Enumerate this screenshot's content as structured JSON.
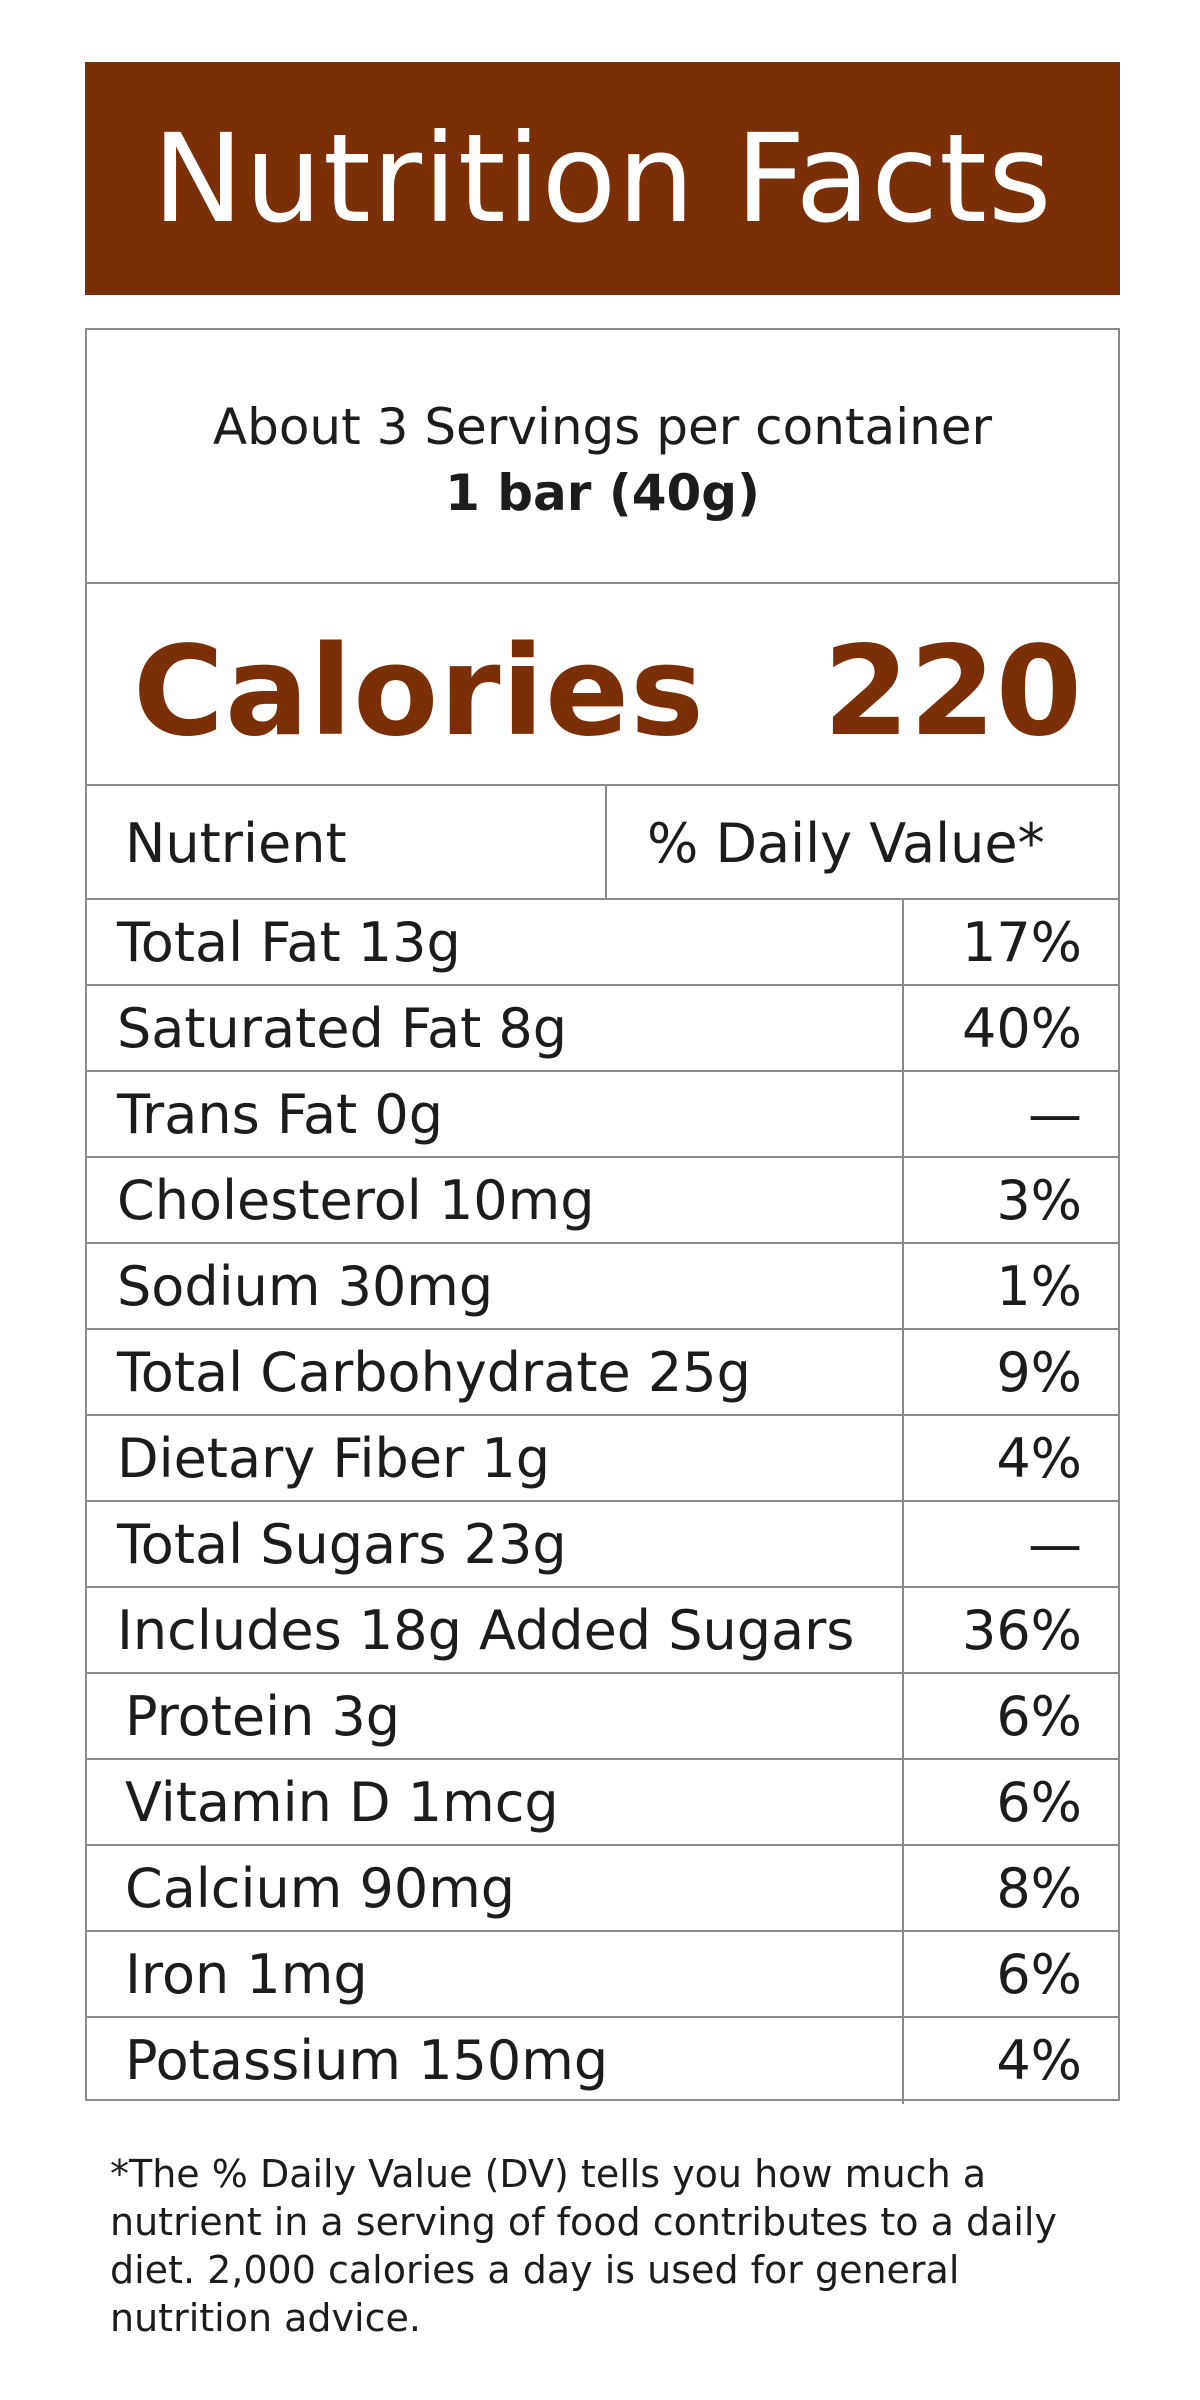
{
  "header": {
    "title": "Nutrition Facts"
  },
  "serving": {
    "servings_per_container": "About 3 Servings per container",
    "serving_size": "1 bar (40g)"
  },
  "calories": {
    "label": "Calories",
    "value": "220"
  },
  "columns": {
    "nutrient": "Nutrient",
    "daily_value": "% Daily Value*"
  },
  "nutrients": [
    {
      "name": "Total Fat 13g",
      "dv": "17%"
    },
    {
      "name": "Saturated Fat 8g",
      "dv": "40%"
    },
    {
      "name": "Trans Fat 0g",
      "dv": "—"
    },
    {
      "name": "Cholesterol 10mg",
      "dv": "3%"
    },
    {
      "name": "Sodium 30mg",
      "dv": "1%"
    },
    {
      "name": "Total Carbohydrate 25g",
      "dv": "9%"
    },
    {
      "name": "Dietary Fiber 1g",
      "dv": "4%"
    },
    {
      "name": "Total Sugars 23g",
      "dv": "—"
    },
    {
      "name": "Includes 18g Added Sugars",
      "dv": "36%"
    },
    {
      "name": "Protein 3g",
      "dv": "6%"
    },
    {
      "name": "Vitamin D 1mcg",
      "dv": "6%"
    },
    {
      "name": "Calcium 90mg",
      "dv": "8%"
    },
    {
      "name": "Iron 1mg",
      "dv": "6%"
    },
    {
      "name": "Potassium 150mg",
      "dv": "4%"
    }
  ],
  "footnote": "*The % Daily Value (DV) tells you how much a nutrient in a serving of food contributes to a daily diet. 2,000 calories a day is used for general nutrition advice.",
  "colors": {
    "brand": "#7b2f06",
    "border": "#8a8a8a",
    "text": "#1c1c1c"
  }
}
